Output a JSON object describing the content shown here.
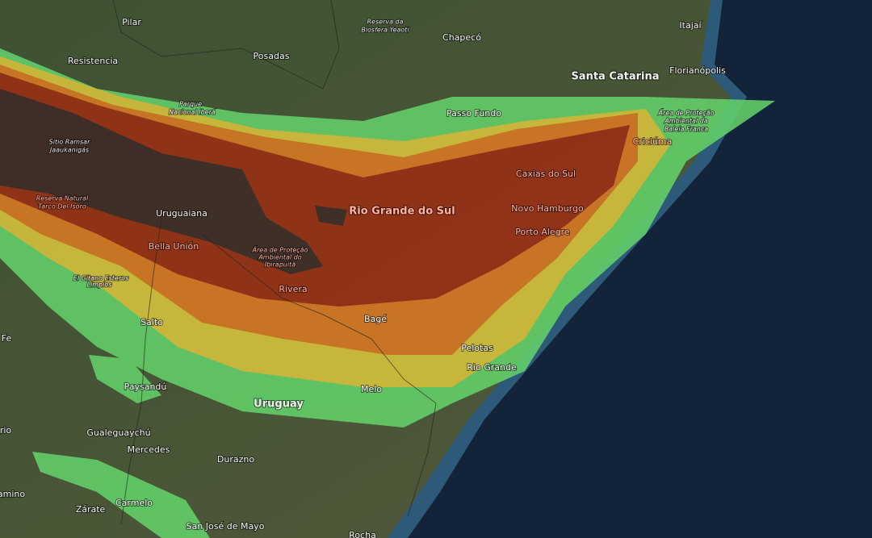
{
  "labels": [
    "Pilar",
    "Reserva da",
    "Biosfera Yeaoti",
    "Chapecó",
    "Itajaí",
    "Resistencia",
    "Posadas",
    "Santa Catarina",
    "Florianópolis",
    "Parque",
    "Nacional Iberá",
    "Passo Fundo",
    "Área de Proteção",
    "Ambiental da",
    "Baleia Franca",
    "Criciúma",
    "Sitio Ramsar",
    "Jaaukanigás",
    "Caxias do Sul",
    "Reserva Natural",
    "Tarco Del Isoro",
    "Uruguaiana",
    "Rio Grande do Sul",
    "Novo Hamburgo",
    "Porto Alegre",
    "Bella Unión",
    "Área de Proteção",
    "Ambiental do",
    "Ibirapuitã",
    "El Gitano Esteros",
    "Limpios",
    "Rivera",
    "Salto",
    "Bagé",
    "Fe",
    "Pelotas",
    "Rio Grande",
    "Paysandú",
    "Uruguay",
    "Melo",
    "rio",
    "Gualeguaychú",
    "Mercedes",
    "Durazno",
    "amino",
    "Zárate",
    "Carmelo",
    "San José de Mayo",
    "Rocha"
  ]
}
